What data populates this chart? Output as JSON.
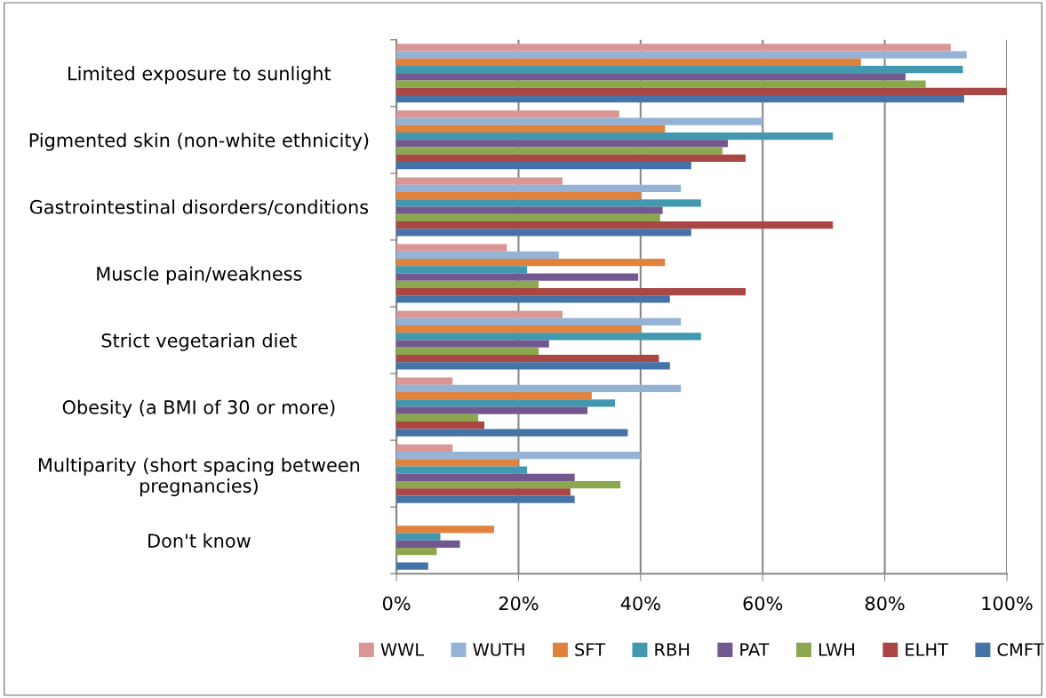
{
  "chart_data": {
    "type": "bar",
    "orientation": "horizontal",
    "categories": [
      "Limited exposure to sunlight",
      "Pigmented skin (non-white ethnicity)",
      "Gastrointestinal disorders/conditions",
      "Muscle pain/weakness",
      "Strict vegetarian diet",
      "Obesity (a BMI of 30 or more)",
      "Multiparity (short spacing between\npregnancies)",
      "Don't know"
    ],
    "series": [
      {
        "name": "WWL",
        "color": "#d99694",
        "values": [
          90.8,
          36.5,
          27.2,
          18.1,
          27.2,
          9.2,
          9.2,
          null
        ]
      },
      {
        "name": "WUTH",
        "color": "#95b3d7",
        "values": [
          93.4,
          60,
          46.6,
          26.6,
          46.6,
          46.6,
          40,
          null
        ]
      },
      {
        "name": "SFT",
        "color": "#e0823c",
        "values": [
          76.1,
          44,
          40,
          44,
          40,
          32,
          20,
          16
        ]
      },
      {
        "name": "RBH",
        "color": "#4198af",
        "values": [
          92.8,
          71.5,
          49.9,
          21.4,
          49.9,
          35.8,
          21.4,
          7.2
        ]
      },
      {
        "name": "PAT",
        "color": "#72588f",
        "values": [
          83.4,
          54.3,
          43.6,
          39.6,
          25,
          31.3,
          29.2,
          10.4
        ]
      },
      {
        "name": "LWH",
        "color": "#8ba84e",
        "values": [
          86.7,
          53.4,
          43.2,
          23.3,
          23.3,
          13.4,
          36.7,
          6.6
        ]
      },
      {
        "name": "ELHT",
        "color": "#aa4643",
        "values": [
          100,
          57.2,
          71.5,
          57.2,
          43,
          14.4,
          28.5,
          null
        ]
      },
      {
        "name": "CMFT",
        "color": "#4572a7",
        "values": [
          93,
          48.3,
          48.3,
          44.8,
          44.8,
          37.9,
          29.2,
          5.2
        ]
      }
    ],
    "xlim": [
      0,
      100
    ],
    "xticks": [
      {
        "value": 0,
        "label": "0%"
      },
      {
        "value": 20,
        "label": "20%"
      },
      {
        "value": 40,
        "label": "40%"
      },
      {
        "value": 60,
        "label": "60%"
      },
      {
        "value": 80,
        "label": "80%"
      },
      {
        "value": 100,
        "label": "100%"
      }
    ],
    "grid": "x",
    "legend": "bottom"
  }
}
